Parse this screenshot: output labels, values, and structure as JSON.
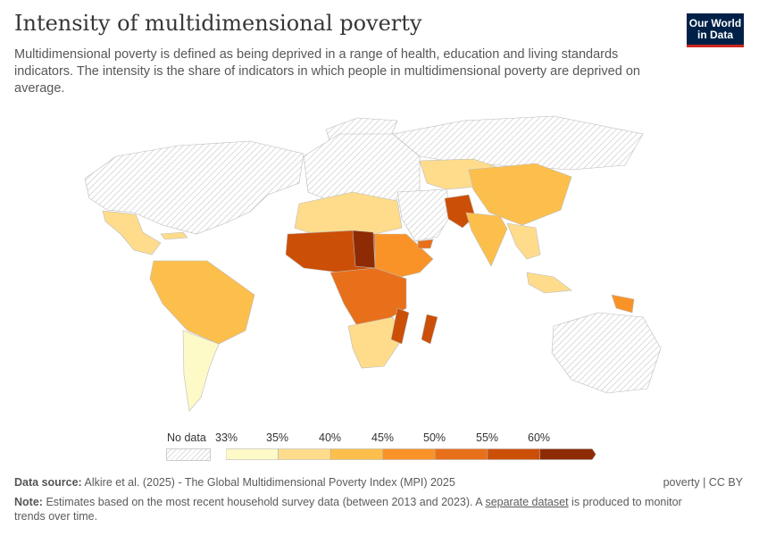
{
  "header": {
    "title": "Intensity of multidimensional poverty",
    "subtitle": "Multidimensional poverty is defined as being deprived in a range of health, education and living standards indicators. The intensity is the share of indicators in which people in multidimensional poverty are deprived on average.",
    "logo": "Our World in Data"
  },
  "legend": {
    "no_data_label": "No data",
    "bins": [
      "33%",
      "35%",
      "40%",
      "45%",
      "50%",
      "55%",
      "60%"
    ],
    "colors": [
      "#fefac8",
      "#fedc8b",
      "#fdbf4c",
      "#f99328",
      "#e8701b",
      "#cc4f07",
      "#8e2b04"
    ],
    "no_data_color": "#e8e8e8"
  },
  "footer": {
    "source_label": "Data source:",
    "source_text": "Alkire et al. (2025) - The Global Multidimensional Poverty Index (MPI) 2025",
    "license": "poverty | CC BY",
    "note_label": "Note:",
    "note_before": "Estimates based on the most recent household survey data (between 2013 and 2023). A",
    "note_link": "separate dataset",
    "note_after": "is produced to monitor trends over time."
  }
}
